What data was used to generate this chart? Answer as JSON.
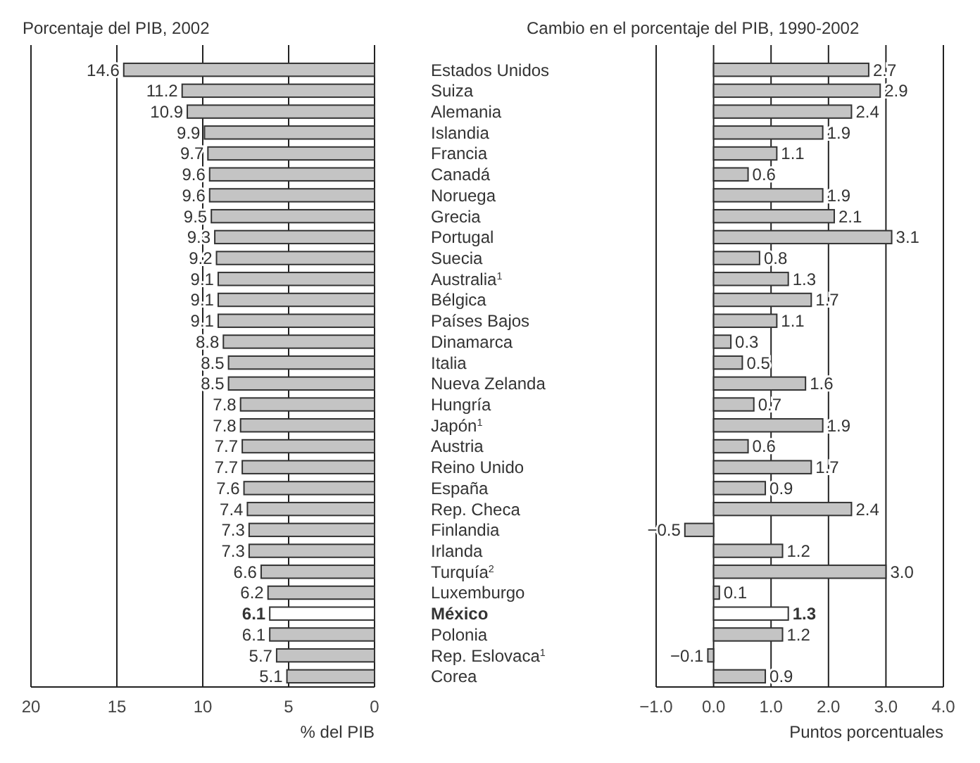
{
  "chart_data": [
    {
      "type": "bar",
      "orientation": "horizontal",
      "title": "Porcentaje del PIB, 2002",
      "xlabel": "% del PIB",
      "categories": [
        "Estados Unidos",
        "Suiza",
        "Alemania",
        "Islandia",
        "Francia",
        "Canadá",
        "Noruega",
        "Grecia",
        "Portugal",
        "Suecia",
        "Australia$^{1}$",
        "Bélgica",
        "Países Bajos",
        "Dinamarca",
        "Italia",
        "Nueva Zelanda",
        "Hungría",
        "Japón$^{1}$",
        "Austria",
        "Reino Unido",
        "España",
        "Rep. Checa",
        "Finlandia",
        "Irlanda",
        "Turquía$^{2}$",
        "Luxemburgo",
        "México",
        "Polonia",
        "Rep. Eslovaca$^{1}$",
        "Corea"
      ],
      "values": [
        14.6,
        11.2,
        10.9,
        9.9,
        9.7,
        9.6,
        9.6,
        9.5,
        9.3,
        9.2,
        9.1,
        9.1,
        9.1,
        8.8,
        8.5,
        8.5,
        7.8,
        7.8,
        7.7,
        7.7,
        7.6,
        7.4,
        7.3,
        7.3,
        6.6,
        6.2,
        6.1,
        6.1,
        5.7,
        5.1
      ],
      "colors": [
        "#c4c4c4",
        "#c4c4c4",
        "#c4c4c4",
        "#c4c4c4",
        "#c4c4c4",
        "#c4c4c4",
        "#c4c4c4",
        "#c4c4c4",
        "#c4c4c4",
        "#c4c4c4",
        "#c4c4c4",
        "#c4c4c4",
        "#c4c4c4",
        "#c4c4c4",
        "#c4c4c4",
        "#c4c4c4",
        "#c4c4c4",
        "#c4c4c4",
        "#c4c4c4",
        "#c4c4c4",
        "#c4c4c4",
        "#c4c4c4",
        "#c4c4c4",
        "#c4c4c4",
        "#c4c4c4",
        "#c4c4c4",
        "#ffffff",
        "#c4c4c4",
        "#c4c4c4",
        "#c4c4c4"
      ],
      "xlim": [
        20,
        0
      ],
      "xticks": [
        20,
        15,
        10,
        5,
        0
      ],
      "grid": "x",
      "data_labels": true
    },
    {
      "type": "bar",
      "orientation": "horizontal",
      "title": "Cambio en el porcentaje del PIB, 1990-2002",
      "xlabel": "Puntos porcentuales",
      "categories": [
        null,
        null,
        null,
        null,
        null,
        null,
        null,
        null,
        null,
        null,
        null,
        null,
        null,
        null,
        null,
        null,
        null,
        null,
        null,
        null,
        null,
        null,
        null,
        null,
        null,
        null,
        null,
        null,
        null,
        null
      ],
      "values": [
        2.7,
        2.9,
        2.4,
        1.9,
        1.1,
        0.6,
        1.9,
        2.1,
        3.1,
        0.8,
        1.3,
        1.7,
        1.1,
        0.3,
        0.5,
        1.6,
        0.7,
        1.9,
        0.6,
        1.7,
        0.9,
        2.4,
        -0.5,
        1.2,
        3.0,
        0.1,
        1.3,
        1.2,
        -0.1,
        0.9
      ],
      "colors": [
        "#c4c4c4",
        "#c4c4c4",
        "#c4c4c4",
        "#c4c4c4",
        "#c4c4c4",
        "#c4c4c4",
        "#c4c4c4",
        "#c4c4c4",
        "#c4c4c4",
        "#c4c4c4",
        "#c4c4c4",
        "#c4c4c4",
        "#c4c4c4",
        "#c4c4c4",
        "#c4c4c4",
        "#c4c4c4",
        "#c4c4c4",
        "#c4c4c4",
        "#c4c4c4",
        "#c4c4c4",
        "#c4c4c4",
        "#c4c4c4",
        "#c4c4c4",
        "#c4c4c4",
        "#c4c4c4",
        "#c4c4c4",
        "#ffffff",
        "#c4c4c4",
        "#c4c4c4",
        "#c4c4c4"
      ],
      "xlim": [
        -1,
        4
      ],
      "xticks": [
        {
          "value": -1,
          "label": "−1.0"
        },
        {
          "value": 0,
          "label": "0.0"
        },
        {
          "value": 1,
          "label": "1.0"
        },
        {
          "value": 2,
          "label": "2.0"
        },
        {
          "value": 3,
          "label": "3.0"
        },
        {
          "value": 4,
          "label": "4.0"
        }
      ],
      "grid": "x",
      "value_labels": [
        "2.7",
        "2.9",
        "2.4",
        "1.9",
        "1.1",
        "0.6",
        "1.9",
        "2.1",
        "3.1",
        "0.8",
        "1.3",
        "1.7",
        "1.1",
        "0.3",
        "0.5",
        "1.6",
        "0.7",
        "1.9",
        "0.6",
        "1.7",
        "0.9",
        "2.4",
        "−0.5",
        "1.2",
        "3.0",
        "0.1",
        "1.3",
        "1.2",
        "−0.1",
        "0.9"
      ]
    }
  ]
}
